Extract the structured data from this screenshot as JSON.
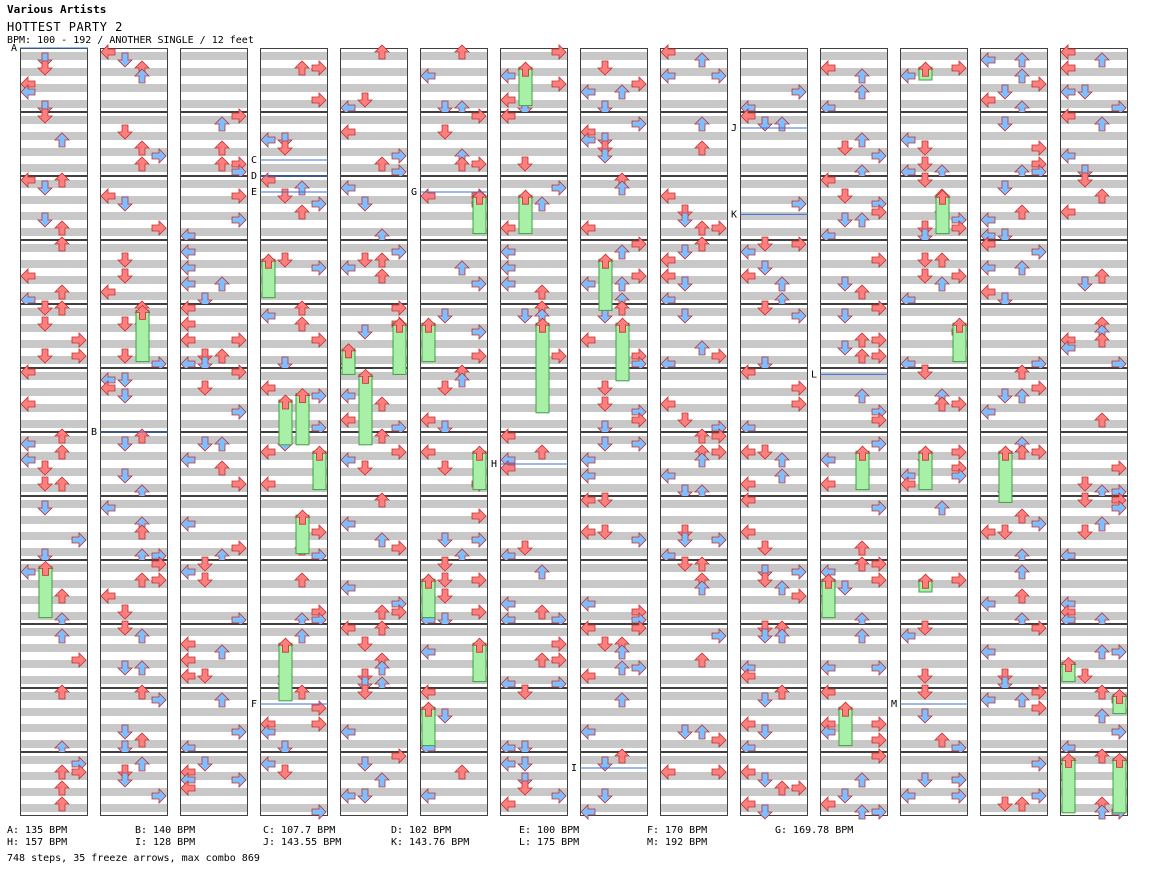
{
  "header": {
    "artist": "Various Artists",
    "title": "HOTTEST PARTY 2",
    "meta": "BPM: 100 - 192 / ANOTHER SINGLE / 12 feet"
  },
  "chart_data": {
    "type": "step-chart",
    "columns": 14,
    "measures_per_column": 12,
    "lanes": [
      "left",
      "down",
      "up",
      "right"
    ],
    "colors": {
      "stripe": "#c8c8c8",
      "arrow_red": "#ff7f7f",
      "arrow_blue": "#7fbfff",
      "arrow_pink": "#ffb0ff",
      "freeze": "#a8f0a8",
      "bpm_line": "#3a6fd8",
      "border": "#404040"
    },
    "bpm_markers": [
      {
        "label": "A",
        "column": 0,
        "measure": 0,
        "fraction": 0.0
      },
      {
        "label": "B",
        "column": 1,
        "measure": 6,
        "fraction": 0.0
      },
      {
        "label": "C",
        "column": 3,
        "measure": 1,
        "fraction": 0.75
      },
      {
        "label": "D",
        "column": 3,
        "measure": 2,
        "fraction": 0.0
      },
      {
        "label": "E",
        "column": 3,
        "measure": 2,
        "fraction": 0.25
      },
      {
        "label": "F",
        "column": 3,
        "measure": 10,
        "fraction": 0.25
      },
      {
        "label": "G",
        "column": 5,
        "measure": 2,
        "fraction": 0.25
      },
      {
        "label": "H",
        "column": 6,
        "measure": 6,
        "fraction": 0.5
      },
      {
        "label": "I",
        "column": 7,
        "measure": 11,
        "fraction": 0.25
      },
      {
        "label": "J",
        "column": 9,
        "measure": 1,
        "fraction": 0.25
      },
      {
        "label": "K",
        "column": 9,
        "measure": 2,
        "fraction": 0.6
      },
      {
        "label": "L",
        "column": 10,
        "measure": 5,
        "fraction": 0.1
      },
      {
        "label": "M",
        "column": 11,
        "measure": 10,
        "fraction": 0.25
      }
    ],
    "freezes": [
      {
        "column": 0,
        "lane": 1,
        "start": 8.1,
        "end": 8.9
      },
      {
        "column": 1,
        "lane": 2,
        "start": 4.1,
        "end": 4.9
      },
      {
        "column": 3,
        "lane": 0,
        "start": 3.3,
        "end": 3.9
      },
      {
        "column": 3,
        "lane": 1,
        "start": 5.5,
        "end": 6.2
      },
      {
        "column": 3,
        "lane": 2,
        "start": 5.4,
        "end": 6.2
      },
      {
        "column": 3,
        "lane": 3,
        "start": 6.3,
        "end": 6.9
      },
      {
        "column": 3,
        "lane": 2,
        "start": 7.3,
        "end": 7.9
      },
      {
        "column": 3,
        "lane": 1,
        "start": 9.3,
        "end": 10.2
      },
      {
        "column": 4,
        "lane": 0,
        "start": 4.7,
        "end": 5.1
      },
      {
        "column": 4,
        "lane": 1,
        "start": 5.1,
        "end": 6.2
      },
      {
        "column": 4,
        "lane": 3,
        "start": 4.3,
        "end": 5.1
      },
      {
        "column": 5,
        "lane": 3,
        "start": 2.3,
        "end": 2.9
      },
      {
        "column": 5,
        "lane": 0,
        "start": 4.3,
        "end": 4.9
      },
      {
        "column": 5,
        "lane": 3,
        "start": 6.3,
        "end": 6.9
      },
      {
        "column": 5,
        "lane": 0,
        "start": 8.3,
        "end": 8.9
      },
      {
        "column": 5,
        "lane": 3,
        "start": 9.3,
        "end": 9.9
      },
      {
        "column": 5,
        "lane": 0,
        "start": 10.3,
        "end": 10.9
      },
      {
        "column": 6,
        "lane": 1,
        "start": 0.3,
        "end": 0.9
      },
      {
        "column": 6,
        "lane": 1,
        "start": 2.3,
        "end": 2.9
      },
      {
        "column": 6,
        "lane": 2,
        "start": 4.3,
        "end": 5.7
      },
      {
        "column": 7,
        "lane": 1,
        "start": 3.3,
        "end": 4.1
      },
      {
        "column": 7,
        "lane": 2,
        "start": 4.3,
        "end": 5.2
      },
      {
        "column": 10,
        "lane": 2,
        "start": 6.3,
        "end": 6.9
      },
      {
        "column": 10,
        "lane": 0,
        "start": 8.3,
        "end": 8.9
      },
      {
        "column": 10,
        "lane": 1,
        "start": 10.3,
        "end": 10.9
      },
      {
        "column": 11,
        "lane": 1,
        "start": 0.3,
        "end": 0.5
      },
      {
        "column": 11,
        "lane": 2,
        "start": 2.3,
        "end": 2.9
      },
      {
        "column": 11,
        "lane": 3,
        "start": 4.3,
        "end": 4.9
      },
      {
        "column": 11,
        "lane": 1,
        "start": 6.3,
        "end": 6.9
      },
      {
        "column": 11,
        "lane": 1,
        "start": 8.3,
        "end": 8.5
      },
      {
        "column": 12,
        "lane": 1,
        "start": 6.3,
        "end": 7.1
      },
      {
        "column": 13,
        "lane": 0,
        "start": 9.6,
        "end": 9.9
      },
      {
        "column": 13,
        "lane": 3,
        "start": 10.1,
        "end": 10.4
      },
      {
        "column": 13,
        "lane": 0,
        "start": 11.1,
        "end": 11.95
      },
      {
        "column": 13,
        "lane": 3,
        "start": 11.1,
        "end": 11.95
      }
    ],
    "bpm_legend": [
      {
        "label": "A",
        "text": "A: 135 BPM"
      },
      {
        "label": "B",
        "text": "B: 140 BPM"
      },
      {
        "label": "C",
        "text": "C: 107.7 BPM"
      },
      {
        "label": "D",
        "text": "D: 102 BPM"
      },
      {
        "label": "E",
        "text": "E: 100 BPM"
      },
      {
        "label": "F",
        "text": "F: 170 BPM"
      },
      {
        "label": "G",
        "text": "G: 169.78 BPM"
      },
      {
        "label": "H",
        "text": "H: 157 BPM"
      },
      {
        "label": "I",
        "text": "I: 128 BPM"
      },
      {
        "label": "J",
        "text": "J: 143.55 BPM"
      },
      {
        "label": "K",
        "text": "K: 143.76 BPM"
      },
      {
        "label": "L",
        "text": "L: 175 BPM"
      },
      {
        "label": "M",
        "text": "M: 192 BPM"
      }
    ],
    "summary": "748 steps, 35 freeze arrows, max combo 869"
  }
}
